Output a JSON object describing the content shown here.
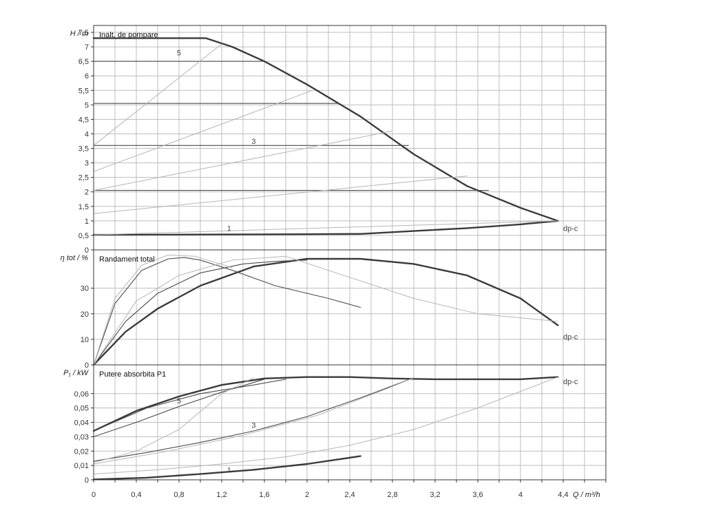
{
  "chart_data": [
    {
      "type": "line",
      "panel": "head",
      "title": "Inalt. de pompare",
      "ylabel": "H / m",
      "xlabel": "Q / m³/h",
      "xlim": [
        0,
        4.8
      ],
      "ylim": [
        0,
        7.5
      ],
      "yticks": [
        "0",
        "0,5",
        "1",
        "1,5",
        "2",
        "2,5",
        "3",
        "3,5",
        "4",
        "4,5",
        "5",
        "5,5",
        "6",
        "6,5",
        "7",
        "7,5"
      ],
      "grid": true,
      "labels": [
        {
          "text": "5",
          "x": 0.78,
          "y": 6.8
        },
        {
          "text": "3",
          "x": 1.48,
          "y": 3.75
        },
        {
          "text": "1",
          "x": 1.25,
          "y": 0.75
        },
        {
          "text": "dp-c",
          "x": 4.4,
          "y": 0.75
        }
      ],
      "series": [
        {
          "style": "heavy",
          "x": [
            0,
            1.05,
            1.3,
            1.6,
            2.0,
            2.5,
            3.0,
            3.5,
            4.0,
            4.35
          ],
          "y": [
            7.3,
            7.3,
            7.0,
            6.5,
            5.7,
            4.6,
            3.3,
            2.2,
            1.45,
            1.0
          ]
        },
        {
          "style": "heavy",
          "x": [
            0,
            1.0,
            2.0,
            2.5,
            3.0,
            3.5,
            4.0,
            4.35
          ],
          "y": [
            0.52,
            0.53,
            0.54,
            0.55,
            0.65,
            0.75,
            0.88,
            1.0
          ]
        },
        {
          "style": "thin",
          "x": [
            0,
            1.6
          ],
          "y": [
            6.5,
            6.5
          ]
        },
        {
          "style": "thin",
          "x": [
            0,
            2.3
          ],
          "y": [
            5.05,
            5.05
          ]
        },
        {
          "style": "thin",
          "x": [
            0,
            2.95
          ],
          "y": [
            3.6,
            3.6
          ]
        },
        {
          "style": "thin",
          "x": [
            0,
            3.7
          ],
          "y": [
            2.05,
            2.05
          ]
        },
        {
          "style": "system",
          "x": [
            0,
            1.2
          ],
          "y": [
            3.6,
            7.1
          ]
        },
        {
          "style": "system",
          "x": [
            0,
            2.05
          ],
          "y": [
            2.7,
            5.5
          ]
        },
        {
          "style": "system",
          "x": [
            0,
            2.8
          ],
          "y": [
            2.05,
            4.1
          ]
        },
        {
          "style": "system",
          "x": [
            0,
            3.5
          ],
          "y": [
            1.25,
            2.55
          ]
        },
        {
          "style": "system",
          "x": [
            0,
            4.35
          ],
          "y": [
            0.52,
            1.0
          ]
        }
      ]
    },
    {
      "type": "line",
      "panel": "efficiency",
      "title": "Randament total",
      "ylabel": "η tot / %",
      "xlim": [
        0,
        4.8
      ],
      "ylim": [
        0,
        45
      ],
      "yticks": [
        "0",
        "10",
        "20",
        "30"
      ],
      "grid": true,
      "labels": [
        {
          "text": "dp-c",
          "x": 4.4,
          "y": 11
        }
      ],
      "series": [
        {
          "style": "heavy",
          "x": [
            0,
            0.3,
            0.6,
            1.0,
            1.5,
            2.0,
            2.5,
            3.0,
            3.5,
            4.0,
            4.35
          ],
          "y": [
            0,
            13,
            22,
            31,
            38.5,
            41.5,
            41.5,
            39.5,
            35,
            26,
            15.5
          ]
        },
        {
          "style": "thin",
          "x": [
            0,
            0.2,
            0.45,
            0.7,
            0.85,
            1.0,
            1.3,
            1.7,
            2.2,
            2.5
          ],
          "y": [
            0,
            24,
            37,
            41.5,
            42,
            41,
            37,
            31,
            26,
            22.5
          ]
        },
        {
          "style": "thin",
          "x": [
            0,
            0.3,
            0.6,
            1.0,
            1.4,
            1.7,
            2.0
          ],
          "y": [
            0,
            17,
            28,
            36,
            39.5,
            40.5,
            41
          ]
        },
        {
          "style": "system",
          "x": [
            0,
            0.2,
            0.45,
            0.7,
            0.95,
            1.3
          ],
          "y": [
            0,
            26,
            39,
            43,
            42.5,
            38
          ]
        },
        {
          "style": "system",
          "x": [
            0,
            0.4,
            0.8,
            1.3,
            1.8,
            2.2,
            3.0,
            3.6,
            4.35
          ],
          "y": [
            0,
            25,
            35,
            41,
            42.5,
            37,
            26,
            20,
            17
          ]
        }
      ]
    },
    {
      "type": "line",
      "panel": "power",
      "title": "Putere absorbita P1",
      "ylabel": "P₁ / kW",
      "xlabel": "Q / m³/h",
      "xlim": [
        0,
        4.8
      ],
      "ylim": [
        0,
        0.08
      ],
      "yticks": [
        "0",
        "0,01",
        "0,02",
        "0,03",
        "0,04",
        "0,05",
        "0,06"
      ],
      "xticks": [
        "0",
        "0,4",
        "0,8",
        "1,2",
        "1,6",
        "2",
        "2,4",
        "2,8",
        "3,2",
        "3,6",
        "4",
        "4,4"
      ],
      "grid": true,
      "labels": [
        {
          "text": "5",
          "x": 0.78,
          "y": 0.055
        },
        {
          "text": "3",
          "x": 1.48,
          "y": 0.038
        },
        {
          "text": "1",
          "x": 1.25,
          "y": 0.007
        },
        {
          "text": "dp-c",
          "x": 4.4,
          "y": 0.0685
        }
      ],
      "series": [
        {
          "style": "heavy",
          "x": [
            0,
            0.4,
            0.8,
            1.2,
            1.6,
            2.0,
            2.4,
            2.8,
            3.2,
            3.6,
            4.0,
            4.35
          ],
          "y": [
            0.034,
            0.048,
            0.058,
            0.066,
            0.0705,
            0.0715,
            0.0715,
            0.0705,
            0.07,
            0.07,
            0.07,
            0.0715
          ]
        },
        {
          "style": "heavy",
          "x": [
            0,
            0.5,
            1.0,
            1.5,
            2.0,
            2.5
          ],
          "y": [
            0.0003,
            0.0015,
            0.004,
            0.007,
            0.011,
            0.0165
          ]
        },
        {
          "style": "thin",
          "x": [
            0,
            0.5,
            1.0,
            1.5,
            1.8
          ],
          "y": [
            0.034,
            0.05,
            0.06,
            0.066,
            0.07
          ]
        },
        {
          "style": "thin",
          "x": [
            0,
            0.5,
            1.0,
            1.5,
            2.0,
            2.5,
            3.0
          ],
          "y": [
            0.013,
            0.019,
            0.026,
            0.034,
            0.044,
            0.057,
            0.071
          ]
        },
        {
          "style": "thin",
          "x": [
            0,
            0.4,
            0.8,
            1.2,
            1.6
          ],
          "y": [
            0.03,
            0.04,
            0.051,
            0.061,
            0.07
          ]
        },
        {
          "style": "system",
          "x": [
            0,
            0.4,
            0.8,
            1.2,
            1.5
          ],
          "y": [
            0.012,
            0.02,
            0.035,
            0.06,
            0.071
          ]
        },
        {
          "style": "system",
          "x": [
            0,
            0.6,
            1.2,
            1.8,
            2.4,
            3.0,
            3.6,
            4.35
          ],
          "y": [
            0.004,
            0.007,
            0.011,
            0.016,
            0.024,
            0.035,
            0.05,
            0.0715
          ]
        },
        {
          "style": "system",
          "x": [
            0,
            0.7,
            1.4,
            2.1,
            2.7,
            3.0
          ],
          "y": [
            0.011,
            0.02,
            0.031,
            0.045,
            0.062,
            0.071
          ]
        }
      ]
    }
  ]
}
